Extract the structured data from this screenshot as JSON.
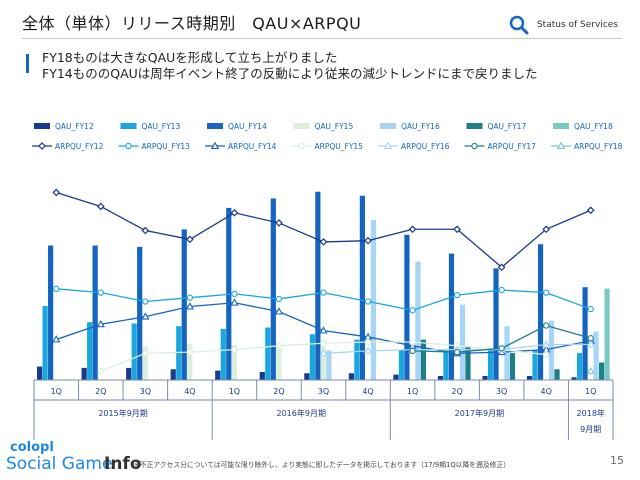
{
  "header": {
    "title": "全体（単体）リリース時期別　QAU×ARPQU",
    "status_label": "Status of Services"
  },
  "headline": {
    "line1": "FY18ものは大きなQAUを形成して立ち上がりました",
    "line2": "FY14もののQAUは周年イベント終了の反動により従来の減少トレンドにまで戻りました"
  },
  "footer": {
    "note": "※不正アクセス分については可能な限り除外し、より実態に即したデータを掲示しております（17/9期1Q以降を遡及修正）",
    "page": "15",
    "logo_line1": "colopl",
    "logo_line2": "Social Game",
    "logo_line3": "Info"
  },
  "colors": {
    "FY12": "#1a3a8f",
    "FY13": "#19a7de",
    "FY14": "#1565c0",
    "FY15": "#dcefdc",
    "FY16": "#a6d5f5",
    "FY17": "#1f7f86",
    "FY18": "#7cc9c4"
  },
  "chart_data": {
    "type": "bar",
    "categories": [
      "1Q",
      "2Q",
      "3Q",
      "4Q",
      "1Q",
      "2Q",
      "3Q",
      "4Q",
      "1Q",
      "2Q",
      "3Q",
      "4Q",
      "1Q"
    ],
    "groups": [
      {
        "label": "2015年9月期",
        "span": 4
      },
      {
        "label": "2016年9月期",
        "span": 4
      },
      {
        "label": "2017年9月期",
        "span": 4
      },
      {
        "label": "2018年\n9月期",
        "span": 1
      }
    ],
    "legend_position": "top",
    "series_qau": [
      {
        "name": "QAU_FY12",
        "key": "FY12",
        "values": [
          10,
          9,
          9,
          8,
          7,
          6,
          5,
          5,
          4,
          3,
          3,
          3,
          2
        ]
      },
      {
        "name": "QAU_FY13",
        "key": "FY13",
        "values": [
          55,
          43,
          42,
          40,
          38,
          39,
          34,
          30,
          22,
          22,
          22,
          22,
          20
        ]
      },
      {
        "name": "QAU_FY14",
        "key": "FY14",
        "values": [
          100,
          100,
          99,
          112,
          128,
          135,
          140,
          137,
          108,
          94,
          83,
          101,
          69
        ]
      },
      {
        "name": "QAU_FY15",
        "key": "FY15",
        "values": [
          null,
          null,
          25,
          27,
          26,
          26,
          25,
          null,
          null,
          null,
          null,
          null,
          null
        ]
      },
      {
        "name": "QAU_FY16",
        "key": "FY16",
        "values": [
          null,
          null,
          null,
          null,
          null,
          null,
          22,
          119,
          88,
          56,
          40,
          44,
          36
        ]
      },
      {
        "name": "QAU_FY17",
        "key": "FY17",
        "values": [
          null,
          null,
          null,
          null,
          null,
          null,
          null,
          null,
          30,
          25,
          20,
          8,
          13
        ]
      },
      {
        "name": "QAU_FY18",
        "key": "FY18",
        "values": [
          null,
          null,
          null,
          null,
          null,
          null,
          null,
          null,
          null,
          null,
          null,
          null,
          68
        ]
      }
    ],
    "series_arpqu": [
      {
        "name": "ARPQU_FY12",
        "key": "FY12",
        "values": [
          148,
          137,
          118,
          111,
          132,
          124,
          109,
          110,
          119,
          119,
          89,
          119,
          134
        ]
      },
      {
        "name": "ARPQU_FY13",
        "key": "FY13",
        "values": [
          72,
          69,
          62,
          65,
          68,
          64,
          69,
          62,
          55,
          67,
          71,
          69,
          56
        ]
      },
      {
        "name": "ARPQU_FY14",
        "key": "FY14",
        "values": [
          32,
          44,
          50,
          58,
          61,
          54,
          39,
          34,
          27,
          21,
          22,
          24,
          31
        ]
      },
      {
        "name": "ARPQU_FY15",
        "key": "FY15",
        "values": [
          null,
          7,
          21,
          22,
          24,
          27,
          29,
          30,
          30,
          27,
          24,
          20,
          null
        ]
      },
      {
        "name": "ARPQU_FY16",
        "key": "FY16",
        "values": [
          null,
          null,
          null,
          null,
          null,
          null,
          21,
          23,
          24,
          24,
          24,
          28,
          28
        ]
      },
      {
        "name": "ARPQU_FY17",
        "key": "FY17",
        "values": [
          null,
          null,
          null,
          null,
          null,
          null,
          null,
          null,
          23,
          22,
          25,
          43,
          33
        ]
      },
      {
        "name": "ARPQU_FY18",
        "key": "FY18",
        "values": [
          null,
          null,
          null,
          null,
          null,
          null,
          null,
          null,
          null,
          null,
          null,
          null,
          7
        ]
      }
    ]
  }
}
